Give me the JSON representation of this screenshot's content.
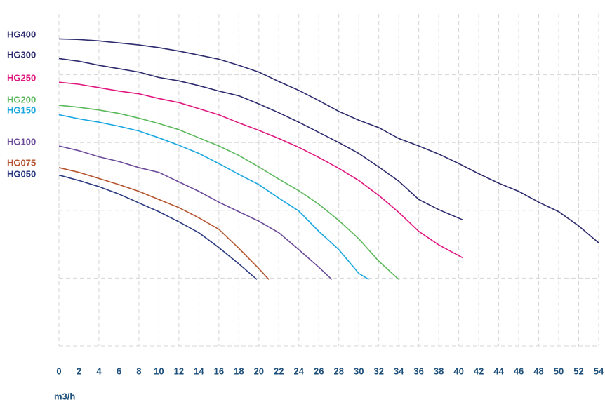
{
  "chart_data": {
    "type": "line",
    "x_label": "m3/h",
    "xlim": [
      0,
      54
    ],
    "xticks": [
      0,
      2,
      4,
      6,
      8,
      10,
      12,
      14,
      16,
      18,
      20,
      22,
      24,
      26,
      28,
      30,
      32,
      34,
      36,
      38,
      40,
      42,
      44,
      46,
      48,
      50,
      52,
      54
    ],
    "ylim": [
      0,
      50
    ],
    "yticks": [
      0,
      10,
      20,
      30,
      40
    ],
    "grid": true,
    "series": [
      {
        "name": "HG400",
        "color": "#2e2c6e",
        "x": [
          0,
          2,
          4,
          6,
          8,
          10,
          12,
          14,
          16,
          18,
          20,
          22,
          24,
          26,
          28,
          30,
          32,
          34,
          36,
          38,
          40,
          42,
          44,
          46,
          48,
          50,
          52,
          54
        ],
        "values": [
          45.3,
          45.2,
          45.0,
          44.7,
          44.4,
          44.0,
          43.5,
          42.9,
          42.3,
          41.4,
          40.4,
          39.0,
          37.7,
          36.2,
          34.6,
          33.3,
          32.2,
          30.6,
          29.5,
          28.3,
          26.9,
          25.4,
          24.0,
          22.8,
          21.2,
          19.8,
          17.7,
          15.2
        ]
      },
      {
        "name": "HG300",
        "color": "#2e2c6e",
        "x": [
          0,
          2,
          4,
          6,
          8,
          10,
          12,
          14,
          16,
          18,
          20,
          22,
          24,
          26,
          28,
          30,
          32,
          34,
          36,
          38,
          40.4
        ],
        "values": [
          42.4,
          42.0,
          41.4,
          40.9,
          40.4,
          39.6,
          39.1,
          38.4,
          37.6,
          36.9,
          35.7,
          34.4,
          33.0,
          31.5,
          30.0,
          28.4,
          26.4,
          24.3,
          21.6,
          20.1,
          18.6
        ]
      },
      {
        "name": "HG250",
        "color": "#e0177f",
        "x": [
          0,
          2,
          4,
          6,
          8,
          10,
          12,
          14,
          16,
          18,
          20,
          22,
          24,
          26,
          28,
          30,
          32,
          34,
          36,
          38,
          40.4
        ],
        "values": [
          38.9,
          38.6,
          38.1,
          37.6,
          37.2,
          36.5,
          35.9,
          35.0,
          34.1,
          32.9,
          31.8,
          30.6,
          29.3,
          27.8,
          26.2,
          24.4,
          22.2,
          19.7,
          16.9,
          14.9,
          13.0
        ]
      },
      {
        "name": "HG200",
        "color": "#5cb85c",
        "x": [
          0,
          2,
          4,
          6,
          8,
          10,
          12,
          14,
          16,
          18,
          20,
          22,
          24,
          26,
          28,
          30,
          32,
          34
        ],
        "values": [
          35.5,
          35.2,
          34.8,
          34.3,
          33.6,
          32.8,
          31.9,
          30.7,
          29.5,
          28.1,
          26.4,
          24.6,
          22.9,
          20.9,
          18.5,
          15.8,
          12.5,
          9.8
        ]
      },
      {
        "name": "HG150",
        "color": "#1aa7e0",
        "x": [
          0,
          2,
          4,
          6,
          8,
          10,
          12,
          14,
          16,
          18,
          20,
          22,
          24,
          26,
          28,
          30,
          31
        ],
        "values": [
          34.1,
          33.5,
          33.0,
          32.4,
          31.7,
          30.7,
          29.6,
          28.4,
          26.9,
          25.3,
          23.8,
          21.8,
          19.9,
          16.9,
          14.2,
          10.7,
          9.8
        ]
      },
      {
        "name": "HG100",
        "color": "#6c4a9a",
        "x": [
          0,
          2,
          4,
          6,
          8,
          10,
          12,
          14,
          16,
          18,
          20,
          22,
          24,
          26,
          27.3
        ],
        "values": [
          29.5,
          28.8,
          27.9,
          27.2,
          26.3,
          25.6,
          24.2,
          22.8,
          21.2,
          19.8,
          18.4,
          16.7,
          14.2,
          11.6,
          9.8
        ]
      },
      {
        "name": "HG075",
        "color": "#b5542e",
        "x": [
          0,
          2,
          4,
          6,
          8,
          10,
          12,
          14,
          16,
          18,
          20,
          21
        ],
        "values": [
          26.3,
          25.6,
          24.7,
          23.8,
          22.8,
          21.6,
          20.4,
          18.9,
          17.2,
          14.4,
          11.4,
          9.8
        ]
      },
      {
        "name": "HG050",
        "color": "#2b3a80",
        "x": [
          0,
          2,
          4,
          6,
          8,
          10,
          12,
          14,
          16,
          18,
          19.8
        ],
        "values": [
          25.2,
          24.4,
          23.5,
          22.4,
          21.1,
          19.8,
          18.3,
          16.7,
          14.5,
          12.1,
          9.8
        ]
      }
    ]
  }
}
